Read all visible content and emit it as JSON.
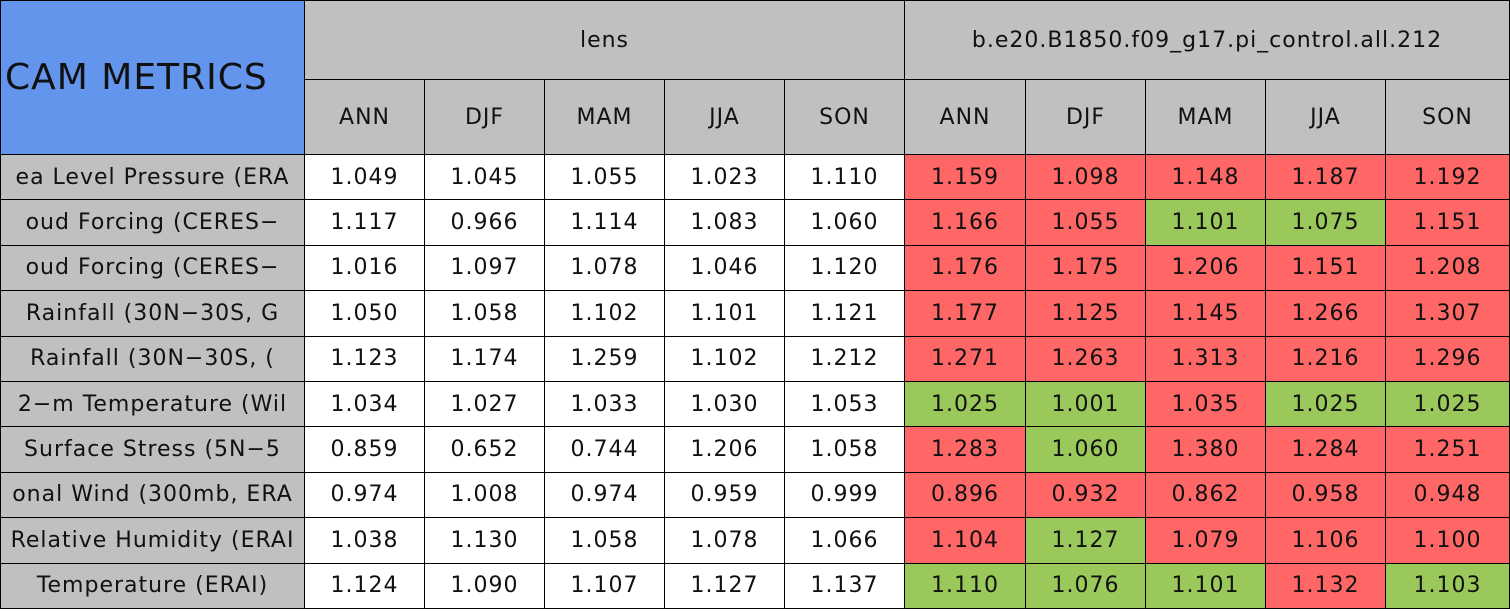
{
  "table": {
    "title": "CAM METRICS",
    "groups": [
      "lens",
      "b.e20.B1850.f09_g17.pi_control.all.212"
    ],
    "seasons": [
      "ANN",
      "DJF",
      "MAM",
      "JJA",
      "SON"
    ],
    "header_color": "#c0c0c0",
    "title_color": "#6495ed",
    "colors": {
      "red": "#ff6666",
      "green": "#9bc85a"
    },
    "rows": [
      {
        "label": "ea Level Pressure (ERA",
        "lens": [
          "1.049",
          "1.045",
          "1.055",
          "1.023",
          "1.110"
        ],
        "control": [
          "1.159",
          "1.098",
          "1.148",
          "1.187",
          "1.192"
        ],
        "control_colors": [
          "red",
          "red",
          "red",
          "red",
          "red"
        ]
      },
      {
        "label": "oud Forcing (CERES−",
        "lens": [
          "1.117",
          "0.966",
          "1.114",
          "1.083",
          "1.060"
        ],
        "control": [
          "1.166",
          "1.055",
          "1.101",
          "1.075",
          "1.151"
        ],
        "control_colors": [
          "red",
          "red",
          "green",
          "green",
          "red"
        ]
      },
      {
        "label": "oud Forcing (CERES−",
        "lens": [
          "1.016",
          "1.097",
          "1.078",
          "1.046",
          "1.120"
        ],
        "control": [
          "1.176",
          "1.175",
          "1.206",
          "1.151",
          "1.208"
        ],
        "control_colors": [
          "red",
          "red",
          "red",
          "red",
          "red"
        ]
      },
      {
        "label": "Rainfall (30N−30S, G",
        "lens": [
          "1.050",
          "1.058",
          "1.102",
          "1.101",
          "1.121"
        ],
        "control": [
          "1.177",
          "1.125",
          "1.145",
          "1.266",
          "1.307"
        ],
        "control_colors": [
          "red",
          "red",
          "red",
          "red",
          "red"
        ]
      },
      {
        "label": "Rainfall (30N−30S, (",
        "lens": [
          "1.123",
          "1.174",
          "1.259",
          "1.102",
          "1.212"
        ],
        "control": [
          "1.271",
          "1.263",
          "1.313",
          "1.216",
          "1.296"
        ],
        "control_colors": [
          "red",
          "red",
          "red",
          "red",
          "red"
        ]
      },
      {
        "label": "2−m Temperature (Wil",
        "lens": [
          "1.034",
          "1.027",
          "1.033",
          "1.030",
          "1.053"
        ],
        "control": [
          "1.025",
          "1.001",
          "1.035",
          "1.025",
          "1.025"
        ],
        "control_colors": [
          "green",
          "green",
          "red",
          "green",
          "green"
        ]
      },
      {
        "label": "Surface Stress (5N−5",
        "lens": [
          "0.859",
          "0.652",
          "0.744",
          "1.206",
          "1.058"
        ],
        "control": [
          "1.283",
          "1.060",
          "1.380",
          "1.284",
          "1.251"
        ],
        "control_colors": [
          "red",
          "green",
          "red",
          "red",
          "red"
        ]
      },
      {
        "label": "onal Wind (300mb, ERA",
        "lens": [
          "0.974",
          "1.008",
          "0.974",
          "0.959",
          "0.999"
        ],
        "control": [
          "0.896",
          "0.932",
          "0.862",
          "0.958",
          "0.948"
        ],
        "control_colors": [
          "red",
          "red",
          "red",
          "red",
          "red"
        ]
      },
      {
        "label": "Relative Humidity (ERAI",
        "lens": [
          "1.038",
          "1.130",
          "1.058",
          "1.078",
          "1.066"
        ],
        "control": [
          "1.104",
          "1.127",
          "1.079",
          "1.106",
          "1.100"
        ],
        "control_colors": [
          "red",
          "green",
          "red",
          "red",
          "red"
        ]
      },
      {
        "label": "Temperature (ERAI)",
        "lens": [
          "1.124",
          "1.090",
          "1.107",
          "1.127",
          "1.137"
        ],
        "control": [
          "1.110",
          "1.076",
          "1.101",
          "1.132",
          "1.103"
        ],
        "control_colors": [
          "green",
          "green",
          "green",
          "red",
          "green"
        ]
      }
    ]
  }
}
